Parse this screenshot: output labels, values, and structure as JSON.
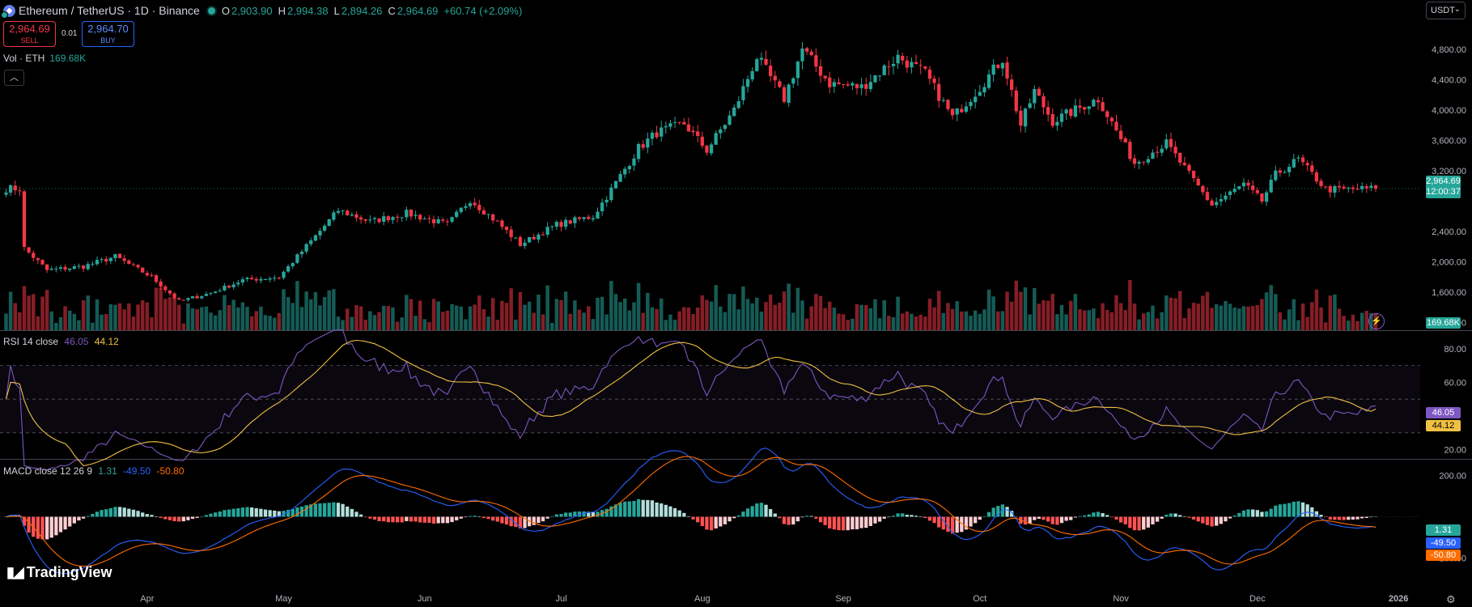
{
  "header": {
    "title": "Ethereum / TetherUS · 1D · Binance",
    "ohlc": [
      {
        "key": "O",
        "value": "2,903.90"
      },
      {
        "key": "H",
        "value": "2,994.38"
      },
      {
        "key": "L",
        "value": "2,894.26"
      },
      {
        "key": "C",
        "value": "2,964.69"
      },
      {
        "key": "",
        "value": "+60.74 (+2.09%)"
      }
    ],
    "sell_price": "2,964.69",
    "sell_label": "SELL",
    "buy_price": "2,964.70",
    "buy_label": "BUY",
    "spread": "0.01",
    "currency": "USDT",
    "currency_icon": "chevron-down-icon"
  },
  "volume_legend": {
    "label": "Vol · ETH",
    "value": "169.68K"
  },
  "collapse_icon": "chevron-up-icon",
  "rsi_legend": {
    "label": "RSI 14 close",
    "rsi": "46.05",
    "ma": "44.12"
  },
  "macd_legend": {
    "label": "MACD close 12 26 9",
    "hist": "1.31",
    "macd": "-49.50",
    "signal": "-50.80"
  },
  "price_badges": {
    "last": "2,964.69",
    "countdown": "12:00:37",
    "volume": "169.68K",
    "rsi": "46.05",
    "rsi_ma": "44.12",
    "macd_hist": "1.31",
    "macd": "-49.50",
    "signal": "-50.80"
  },
  "brand": {
    "name": "TradingView",
    "icon": "tradingview-logo-icon"
  },
  "colors": {
    "up": "#26a69a",
    "down": "#f23645",
    "rsi": "#7e57c2",
    "rsi_ma": "#f0c042",
    "macd": "#2962ff",
    "signal": "#ff6d00",
    "background": "#000000"
  },
  "chart_data": [
    {
      "type": "candlestick",
      "title": "Ethereum / TetherUS · 1D · Binance",
      "x_labels": [
        "Apr",
        "May",
        "Jun",
        "Jul",
        "Aug",
        "Sep",
        "Oct",
        "Nov",
        "Dec",
        "2026"
      ],
      "y_ticks": [
        1200,
        1600,
        2000,
        2400,
        3200,
        3600,
        4000,
        4400,
        4800
      ],
      "y_tick_labels": [
        "1,200.00",
        "1,600.00",
        "2,000.00",
        "2,400.00",
        "3,200.00",
        "3,600.00",
        "4,000.00",
        "4,400.00",
        "4,800.00"
      ],
      "ylim": [
        1100,
        5150
      ],
      "scale": "linear",
      "series_close_anchors": [
        {
          "date": "2025-03-05",
          "close": 2180
        },
        {
          "date": "2025-03-10",
          "close": 1890
        },
        {
          "date": "2025-03-18",
          "close": 1940
        },
        {
          "date": "2025-03-25",
          "close": 2070
        },
        {
          "date": "2025-04-02",
          "close": 1800
        },
        {
          "date": "2025-04-08",
          "close": 1480
        },
        {
          "date": "2025-04-15",
          "close": 1590
        },
        {
          "date": "2025-04-22",
          "close": 1760
        },
        {
          "date": "2025-04-30",
          "close": 1800
        },
        {
          "date": "2025-05-08",
          "close": 2340
        },
        {
          "date": "2025-05-13",
          "close": 2680
        },
        {
          "date": "2025-05-20",
          "close": 2530
        },
        {
          "date": "2025-05-28",
          "close": 2640
        },
        {
          "date": "2025-06-06",
          "close": 2490
        },
        {
          "date": "2025-06-11",
          "close": 2820
        },
        {
          "date": "2025-06-17",
          "close": 2520
        },
        {
          "date": "2025-06-22",
          "close": 2230
        },
        {
          "date": "2025-06-30",
          "close": 2490
        },
        {
          "date": "2025-07-08",
          "close": 2600
        },
        {
          "date": "2025-07-12",
          "close": 2950
        },
        {
          "date": "2025-07-18",
          "close": 3500
        },
        {
          "date": "2025-07-22",
          "close": 3700
        },
        {
          "date": "2025-07-28",
          "close": 3820
        },
        {
          "date": "2025-08-02",
          "close": 3470
        },
        {
          "date": "2025-08-08",
          "close": 4000
        },
        {
          "date": "2025-08-13",
          "close": 4700
        },
        {
          "date": "2025-08-19",
          "close": 4150
        },
        {
          "date": "2025-08-23",
          "close": 4800
        },
        {
          "date": "2025-08-29",
          "close": 4350
        },
        {
          "date": "2025-09-05",
          "close": 4300
        },
        {
          "date": "2025-09-13",
          "close": 4700
        },
        {
          "date": "2025-09-19",
          "close": 4480
        },
        {
          "date": "2025-09-25",
          "close": 3900
        },
        {
          "date": "2025-10-01",
          "close": 4300
        },
        {
          "date": "2025-10-06",
          "close": 4680
        },
        {
          "date": "2025-10-10",
          "close": 3800
        },
        {
          "date": "2025-10-13",
          "close": 4250
        },
        {
          "date": "2025-10-17",
          "close": 3850
        },
        {
          "date": "2025-10-27",
          "close": 4150
        },
        {
          "date": "2025-11-04",
          "close": 3300
        },
        {
          "date": "2025-11-08",
          "close": 3450
        },
        {
          "date": "2025-11-11",
          "close": 3560
        },
        {
          "date": "2025-11-16",
          "close": 3150
        },
        {
          "date": "2025-11-21",
          "close": 2750
        },
        {
          "date": "2025-11-28",
          "close": 3020
        },
        {
          "date": "2025-12-02",
          "close": 2800
        },
        {
          "date": "2025-12-05",
          "close": 3150
        },
        {
          "date": "2025-12-10",
          "close": 3350
        },
        {
          "date": "2025-12-16",
          "close": 2960
        },
        {
          "date": "2025-12-19",
          "close": 2950
        },
        {
          "date": "2025-12-27",
          "close": 2964.69
        }
      ],
      "last_price": 2964.69
    },
    {
      "type": "bar",
      "title": "Vol · ETH",
      "last_value": "169.68K"
    },
    {
      "type": "line",
      "title": "RSI 14 close",
      "series": [
        {
          "name": "RSI",
          "last": 46.05
        },
        {
          "name": "MA",
          "last": 44.12
        }
      ],
      "y_ticks": [
        20,
        40,
        60,
        80
      ],
      "y_tick_labels": [
        "20.00",
        "",
        "60.00",
        "80.00"
      ],
      "bands": [
        30,
        50,
        70
      ],
      "ylim": [
        15,
        90
      ]
    },
    {
      "type": "line",
      "title": "MACD close 12 26 9",
      "series": [
        {
          "name": "Histogram",
          "last": 1.31
        },
        {
          "name": "MACD",
          "last": -49.5
        },
        {
          "name": "Signal",
          "last": -50.8
        }
      ],
      "y_ticks": [
        -200,
        200
      ],
      "y_tick_labels": [
        "-200.00",
        "200.00"
      ]
    }
  ]
}
